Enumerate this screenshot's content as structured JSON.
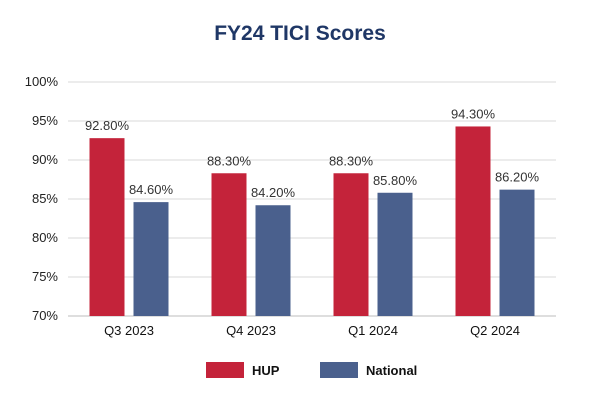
{
  "chart_data": {
    "type": "bar",
    "title": "FY24 TICI Scores",
    "categories": [
      "Q3 2023",
      "Q4 2023",
      "Q1 2024",
      "Q2 2024"
    ],
    "series": [
      {
        "name": "HUP",
        "color": "#c4233a",
        "values": [
          92.8,
          88.3,
          88.3,
          94.3
        ],
        "labels": [
          "92.80%",
          "88.30%",
          "88.30%",
          "94.30%"
        ]
      },
      {
        "name": "National",
        "color": "#4a608d",
        "values": [
          84.6,
          84.2,
          85.8,
          86.2
        ],
        "labels": [
          "84.60%",
          "84.20%",
          "85.80%",
          "86.20%"
        ]
      }
    ],
    "ylim": [
      70,
      100
    ],
    "yticks": [
      70,
      75,
      80,
      85,
      90,
      95,
      100
    ],
    "ytick_labels": [
      "70%",
      "75%",
      "80%",
      "85%",
      "90%",
      "95%",
      "100%"
    ],
    "xlabel": "",
    "ylabel": "",
    "grid": true,
    "legend": "bottom-center",
    "gridColor": "#d8d8d8"
  }
}
